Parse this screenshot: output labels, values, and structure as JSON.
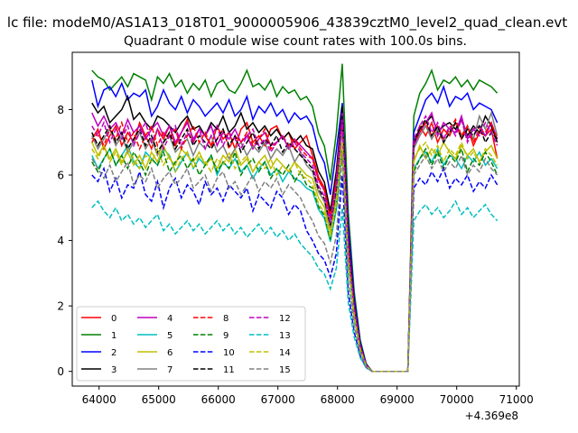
{
  "chart_data": {
    "type": "line",
    "suptitle": "lc file: modeM0/AS1A13_018T01_9000005906_43839cztM0_level2_quad_clean.evt",
    "title": "Quadrant 0 module wise count rates with 100.0s bins.",
    "xlabel": "",
    "ylabel": "",
    "x_offset_text": "+4.369e8",
    "xlim": [
      63550,
      71050
    ],
    "ylim": [
      -0.45,
      9.75
    ],
    "xticks": [
      64000,
      65000,
      66000,
      67000,
      68000,
      69000,
      70000,
      71000
    ],
    "xtick_labels": [
      "64000",
      "65000",
      "66000",
      "67000",
      "68000",
      "69000",
      "70000",
      "71000"
    ],
    "yticks": [
      0,
      2,
      4,
      6,
      8
    ],
    "ytick_labels": [
      "0",
      "2",
      "4",
      "6",
      "8"
    ],
    "grid": false,
    "legend_position": "lower-left",
    "x_segments": [
      {
        "start": 63880,
        "end": 67580,
        "step": 100
      },
      {
        "start": 67580,
        "end": 68580,
        "step": 100
      },
      {
        "start": 68580,
        "end": 69180,
        "step": 100
      },
      {
        "start": 69180,
        "end": 70680,
        "step": 100
      }
    ],
    "series": [
      {
        "name": "0",
        "color": "#ff0000",
        "dash": "solid",
        "active1": [
          7.1,
          7.4,
          6.8,
          7.2,
          7.5,
          6.9,
          7.3,
          7.0,
          7.6,
          7.2,
          6.8,
          7.4,
          7.1,
          7.5,
          6.9,
          7.3,
          7.7,
          7.0,
          7.4,
          7.2,
          6.9,
          7.5,
          7.1,
          7.3,
          6.8,
          7.4,
          7.6,
          7.0,
          7.2,
          6.9,
          7.4,
          7.5,
          7.1,
          7.3,
          6.8,
          7.0,
          7.2,
          6.6
        ],
        "active2": [
          6.8,
          7.5,
          7.2,
          7.6,
          7.0,
          7.4,
          7.2,
          7.6,
          7.1,
          7.5,
          6.9,
          7.3,
          7.2,
          7.4,
          6.5,
          3.2
        ],
        "peak": 7.6
      },
      {
        "name": "1",
        "color": "#008000",
        "dash": "solid",
        "active1": [
          9.2,
          9.0,
          8.9,
          8.6,
          8.8,
          9.0,
          8.7,
          9.1,
          9.0,
          8.9,
          8.3,
          9.0,
          8.8,
          9.1,
          8.7,
          8.9,
          8.5,
          8.8,
          8.6,
          8.9,
          8.4,
          8.8,
          8.9,
          8.6,
          8.5,
          8.8,
          9.2,
          8.7,
          8.8,
          8.6,
          8.9,
          8.4,
          8.7,
          8.5,
          8.6,
          8.3,
          8.4,
          8.1
        ],
        "active2": [
          7.8,
          8.5,
          8.8,
          9.2,
          8.6,
          8.9,
          8.8,
          9.0,
          8.7,
          8.9,
          8.6,
          8.9,
          8.8,
          8.7,
          8.5,
          3.5
        ],
        "peak": 9.4
      },
      {
        "name": "2",
        "color": "#0000ff",
        "dash": "solid",
        "active1": [
          8.9,
          8.1,
          8.6,
          8.7,
          8.4,
          8.8,
          8.3,
          8.5,
          8.4,
          8.6,
          7.8,
          8.1,
          8.6,
          8.2,
          8.0,
          8.4,
          7.9,
          8.3,
          8.1,
          7.8,
          8.0,
          8.2,
          7.9,
          8.3,
          7.8,
          8.0,
          8.4,
          7.7,
          8.1,
          7.9,
          8.2,
          7.8,
          8.0,
          7.6,
          7.9,
          7.7,
          7.8,
          7.5
        ],
        "active2": [
          7.3,
          7.8,
          8.3,
          8.5,
          8.2,
          8.7,
          8.1,
          8.4,
          8.3,
          8.5,
          8.0,
          8.2,
          8.1,
          8.0,
          7.6,
          3.0
        ],
        "peak": 8.2
      },
      {
        "name": "3",
        "color": "#000000",
        "dash": "solid",
        "active1": [
          8.2,
          7.9,
          8.1,
          7.6,
          7.8,
          8.0,
          8.4,
          7.7,
          7.9,
          7.6,
          7.4,
          7.8,
          7.7,
          7.5,
          7.3,
          7.6,
          7.8,
          7.4,
          7.5,
          7.2,
          7.6,
          7.4,
          7.8,
          7.3,
          7.5,
          7.9,
          7.4,
          7.6,
          7.3,
          7.5,
          7.2,
          7.4,
          7.1,
          7.3,
          7.0,
          7.2,
          6.9,
          6.8
        ],
        "active2": [
          7.0,
          7.4,
          7.6,
          7.8,
          7.3,
          7.5,
          7.6,
          7.4,
          7.7,
          7.2,
          7.5,
          7.3,
          7.8,
          7.5,
          7.0,
          3.1
        ],
        "peak": 8.1
      },
      {
        "name": "4",
        "color": "#bf00bf",
        "dash": "solid",
        "active1": [
          7.9,
          7.5,
          7.8,
          7.4,
          7.6,
          7.2,
          7.7,
          7.3,
          7.5,
          7.1,
          7.4,
          7.6,
          7.2,
          7.5,
          7.0,
          7.3,
          7.6,
          7.1,
          7.4,
          7.2,
          7.5,
          6.9,
          7.3,
          7.1,
          7.4,
          7.0,
          7.2,
          6.8,
          7.1,
          7.3,
          6.9,
          7.0,
          7.2,
          6.8,
          7.1,
          6.9,
          6.7,
          6.5
        ],
        "active2": [
          6.9,
          7.3,
          7.6,
          7.9,
          7.2,
          7.6,
          7.4,
          7.3,
          7.8,
          7.1,
          7.4,
          7.5,
          7.2,
          7.6,
          7.1,
          3.0
        ],
        "peak": 7.9
      },
      {
        "name": "5",
        "color": "#00bfbf",
        "dash": "solid",
        "active1": [
          6.6,
          6.2,
          6.5,
          6.8,
          6.3,
          6.6,
          6.9,
          6.4,
          6.2,
          6.7,
          6.5,
          6.3,
          6.8,
          6.6,
          6.1,
          6.4,
          6.7,
          6.2,
          6.5,
          6.3,
          6.6,
          6.0,
          6.4,
          6.2,
          6.5,
          6.1,
          6.3,
          5.9,
          6.2,
          6.4,
          6.0,
          6.2,
          5.8,
          6.1,
          5.9,
          5.8,
          5.6,
          5.5
        ],
        "active2": [
          6.2,
          6.5,
          6.7,
          6.4,
          6.8,
          6.3,
          6.6,
          6.5,
          6.2,
          6.6,
          6.4,
          6.7,
          6.3,
          6.5,
          6.2,
          2.8
        ],
        "peak": 6.8
      },
      {
        "name": "6",
        "color": "#bfbf00",
        "dash": "solid",
        "active1": [
          7.0,
          6.6,
          6.9,
          6.5,
          6.8,
          6.4,
          6.7,
          6.3,
          6.6,
          6.2,
          6.7,
          6.4,
          6.9,
          6.5,
          6.3,
          6.8,
          6.6,
          6.4,
          6.7,
          6.3,
          6.5,
          6.2,
          6.6,
          6.4,
          6.8,
          6.3,
          6.5,
          6.1,
          6.4,
          6.6,
          6.2,
          6.5,
          6.3,
          6.1,
          6.4,
          6.2,
          6.0,
          5.9
        ],
        "active2": [
          6.4,
          6.9,
          6.5,
          6.8,
          6.6,
          7.0,
          6.7,
          6.5,
          6.9,
          6.6,
          6.8,
          6.4,
          6.7,
          6.9,
          6.5,
          3.0
        ],
        "peak": 6.9
      },
      {
        "name": "7",
        "color": "#808080",
        "dash": "solid",
        "active1": [
          7.2,
          6.8,
          7.1,
          7.4,
          6.9,
          7.2,
          6.7,
          7.0,
          7.3,
          6.8,
          7.1,
          6.6,
          7.0,
          7.2,
          6.7,
          6.9,
          7.1,
          6.6,
          7.0,
          6.8,
          7.2,
          6.7,
          6.9,
          6.5,
          6.8,
          7.0,
          6.6,
          6.9,
          6.7,
          7.0,
          6.5,
          6.8,
          6.6,
          6.9,
          6.4,
          6.7,
          6.3,
          6.1
        ],
        "active2": [
          6.8,
          7.2,
          7.5,
          7.1,
          7.4,
          7.0,
          7.3,
          7.6,
          7.2,
          7.5,
          7.1,
          7.8,
          7.4,
          7.9,
          7.2,
          3.2
        ],
        "peak": 7.4
      },
      {
        "name": "8",
        "color": "#ff0000",
        "dash": "dashed",
        "active1": [
          7.0,
          7.3,
          6.9,
          7.4,
          7.1,
          7.6,
          7.0,
          7.3,
          6.8,
          7.2,
          7.5,
          6.9,
          7.3,
          7.1,
          7.4,
          6.8,
          7.2,
          7.5,
          7.0,
          7.3,
          6.9,
          7.1,
          7.4,
          6.8,
          7.2,
          7.0,
          7.3,
          6.9,
          7.1,
          7.4,
          6.8,
          7.0,
          7.2,
          6.9,
          7.1,
          6.8,
          6.6,
          6.5
        ],
        "active2": [
          7.0,
          7.3,
          7.6,
          7.2,
          7.5,
          7.1,
          7.4,
          7.7,
          7.2,
          7.5,
          7.0,
          7.4,
          7.3,
          7.6,
          7.1,
          3.1
        ],
        "peak": 7.7
      },
      {
        "name": "9",
        "color": "#008000",
        "dash": "dashed",
        "active1": [
          6.4,
          6.1,
          6.5,
          6.8,
          6.3,
          6.6,
          6.2,
          6.7,
          6.4,
          6.0,
          6.5,
          6.3,
          6.7,
          6.1,
          6.4,
          6.6,
          6.2,
          6.5,
          6.0,
          6.3,
          6.6,
          6.1,
          6.4,
          6.2,
          6.7,
          6.0,
          6.3,
          6.5,
          6.1,
          6.4,
          5.9,
          6.2,
          6.0,
          6.3,
          5.8,
          6.1,
          5.7,
          5.6
        ],
        "active2": [
          6.1,
          6.5,
          6.8,
          6.3,
          6.7,
          6.2,
          6.6,
          6.4,
          6.8,
          6.1,
          6.5,
          6.3,
          6.7,
          6.4,
          6.0,
          2.9
        ],
        "peak": 6.9
      },
      {
        "name": "10",
        "color": "#0000ff",
        "dash": "dashed",
        "active1": [
          6.0,
          5.8,
          6.2,
          5.5,
          5.9,
          5.3,
          5.7,
          5.6,
          6.1,
          5.4,
          5.2,
          5.8,
          5.0,
          5.6,
          5.9,
          5.3,
          5.7,
          5.5,
          5.1,
          5.8,
          5.4,
          5.6,
          5.2,
          5.7,
          5.5,
          5.3,
          5.6,
          4.9,
          5.4,
          5.2,
          5.0,
          5.5,
          5.3,
          4.8,
          5.1,
          4.9,
          4.3,
          4.0
        ],
        "active2": [
          5.6,
          5.9,
          5.7,
          6.1,
          5.8,
          6.2,
          5.6,
          5.9,
          5.7,
          6.0,
          5.5,
          5.8,
          5.6,
          6.0,
          5.7,
          2.6
        ],
        "peak": 6.0
      },
      {
        "name": "11",
        "color": "#000000",
        "dash": "dashed",
        "active1": [
          7.3,
          6.9,
          7.2,
          7.5,
          7.0,
          7.3,
          6.8,
          7.1,
          7.4,
          6.9,
          7.2,
          6.7,
          7.0,
          7.3,
          6.8,
          7.1,
          7.4,
          6.9,
          7.2,
          7.0,
          6.8,
          7.1,
          7.4,
          6.9,
          7.2,
          6.7,
          7.0,
          7.3,
          6.8,
          7.1,
          6.9,
          7.2,
          6.7,
          7.0,
          6.8,
          6.6,
          6.4,
          6.2
        ],
        "active2": [
          7.0,
          7.4,
          7.7,
          7.2,
          7.5,
          7.0,
          7.3,
          7.6,
          7.1,
          7.4,
          7.2,
          7.5,
          7.0,
          7.3,
          7.1,
          3.0
        ],
        "peak": 7.8
      },
      {
        "name": "12",
        "color": "#bf00bf",
        "dash": "dashed",
        "active1": [
          7.5,
          7.2,
          7.6,
          7.0,
          7.4,
          7.1,
          7.5,
          6.9,
          7.3,
          7.6,
          7.0,
          7.4,
          6.8,
          7.2,
          7.5,
          6.9,
          7.3,
          7.0,
          7.4,
          6.8,
          7.2,
          7.5,
          6.9,
          7.3,
          7.1,
          6.8,
          7.2,
          7.4,
          6.9,
          7.1,
          6.7,
          7.0,
          7.2,
          6.8,
          7.0,
          6.7,
          6.5,
          6.3
        ],
        "active2": [
          7.1,
          7.5,
          7.8,
          7.3,
          7.6,
          7.1,
          7.5,
          7.2,
          7.7,
          7.0,
          7.4,
          7.2,
          7.6,
          7.3,
          6.9,
          3.1
        ],
        "peak": 7.7
      },
      {
        "name": "13",
        "color": "#00bfbf",
        "dash": "dashed",
        "active1": [
          5.0,
          5.2,
          4.9,
          4.7,
          5.0,
          4.6,
          4.8,
          4.5,
          4.7,
          4.4,
          4.6,
          4.8,
          4.3,
          4.5,
          4.2,
          4.4,
          4.6,
          4.3,
          4.5,
          4.2,
          4.4,
          4.6,
          4.3,
          4.5,
          4.2,
          4.4,
          4.1,
          4.3,
          4.5,
          4.2,
          4.4,
          4.1,
          4.3,
          4.0,
          4.2,
          3.9,
          3.7,
          3.5
        ],
        "active2": [
          4.6,
          4.9,
          5.1,
          4.8,
          5.0,
          4.7,
          4.9,
          5.2,
          4.8,
          5.0,
          4.7,
          4.9,
          5.1,
          4.8,
          4.6,
          2.1
        ],
        "peak": 5.0
      },
      {
        "name": "14",
        "color": "#bfbf00",
        "dash": "dashed",
        "active1": [
          6.8,
          6.5,
          6.9,
          6.4,
          6.7,
          6.3,
          6.8,
          6.5,
          6.2,
          6.6,
          6.4,
          6.8,
          6.3,
          6.6,
          6.1,
          6.5,
          6.7,
          6.2,
          6.6,
          6.4,
          6.1,
          6.5,
          6.3,
          6.7,
          6.2,
          6.4,
          6.6,
          6.1,
          6.4,
          6.2,
          6.5,
          6.0,
          6.3,
          6.1,
          6.4,
          6.0,
          5.9,
          5.7
        ],
        "active2": [
          6.5,
          6.8,
          7.0,
          6.6,
          6.9,
          6.4,
          6.8,
          6.6,
          7.0,
          6.5,
          6.7,
          6.4,
          6.8,
          6.6,
          6.3,
          2.9
        ],
        "peak": 7.0
      },
      {
        "name": "15",
        "color": "#808080",
        "dash": "dashed",
        "active1": [
          6.5,
          6.2,
          5.9,
          6.3,
          5.8,
          6.1,
          6.4,
          5.7,
          6.0,
          5.8,
          6.2,
          5.6,
          5.9,
          6.1,
          5.7,
          5.9,
          6.2,
          5.6,
          5.8,
          6.0,
          5.5,
          5.9,
          6.1,
          5.6,
          5.8,
          5.4,
          5.7,
          6.0,
          5.5,
          5.8,
          5.6,
          5.9,
          5.4,
          5.7,
          5.5,
          5.3,
          4.9,
          4.6
        ],
        "active2": [
          6.0,
          6.3,
          6.6,
          6.2,
          6.5,
          6.1,
          6.4,
          6.2,
          6.6,
          6.0,
          6.3,
          6.1,
          6.5,
          6.2,
          6.0,
          2.8
        ],
        "peak": 6.6
      }
    ]
  }
}
